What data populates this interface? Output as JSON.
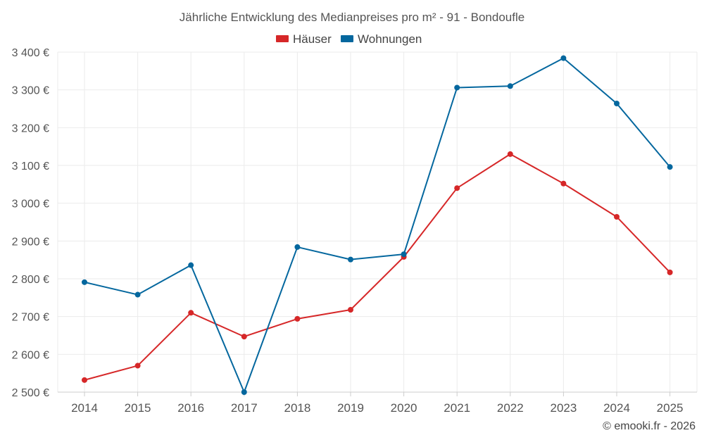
{
  "chart_data": {
    "type": "line",
    "title": "Jährliche Entwicklung des Medianpreises pro m² - 91 - Bondoufle",
    "xlabel": "",
    "ylabel": "",
    "categories": [
      "2014",
      "2015",
      "2016",
      "2017",
      "2018",
      "2019",
      "2020",
      "2021",
      "2022",
      "2023",
      "2024",
      "2025"
    ],
    "ylim": [
      2500,
      3400
    ],
    "yticks": [
      2500,
      2600,
      2700,
      2800,
      2900,
      3000,
      3100,
      3200,
      3300,
      3400
    ],
    "ytick_labels": [
      "2 500 €",
      "2 600 €",
      "2 700 €",
      "2 800 €",
      "2 900 €",
      "3 000 €",
      "3 100 €",
      "3 200 €",
      "3 300 €",
      "3 400 €"
    ],
    "grid": true,
    "legend_position": "top-center",
    "series": [
      {
        "name": "Häuser",
        "color": "#d62728",
        "values": [
          2532,
          2570,
          2710,
          2647,
          2694,
          2718,
          2858,
          3040,
          3130,
          3052,
          2964,
          2817
        ]
      },
      {
        "name": "Wohnungen",
        "color": "#04679e",
        "values": [
          2791,
          2758,
          2836,
          2500,
          2884,
          2851,
          2865,
          3306,
          3310,
          3384,
          3264,
          3096
        ]
      }
    ],
    "credit": "© emooki.fr - 2026"
  }
}
